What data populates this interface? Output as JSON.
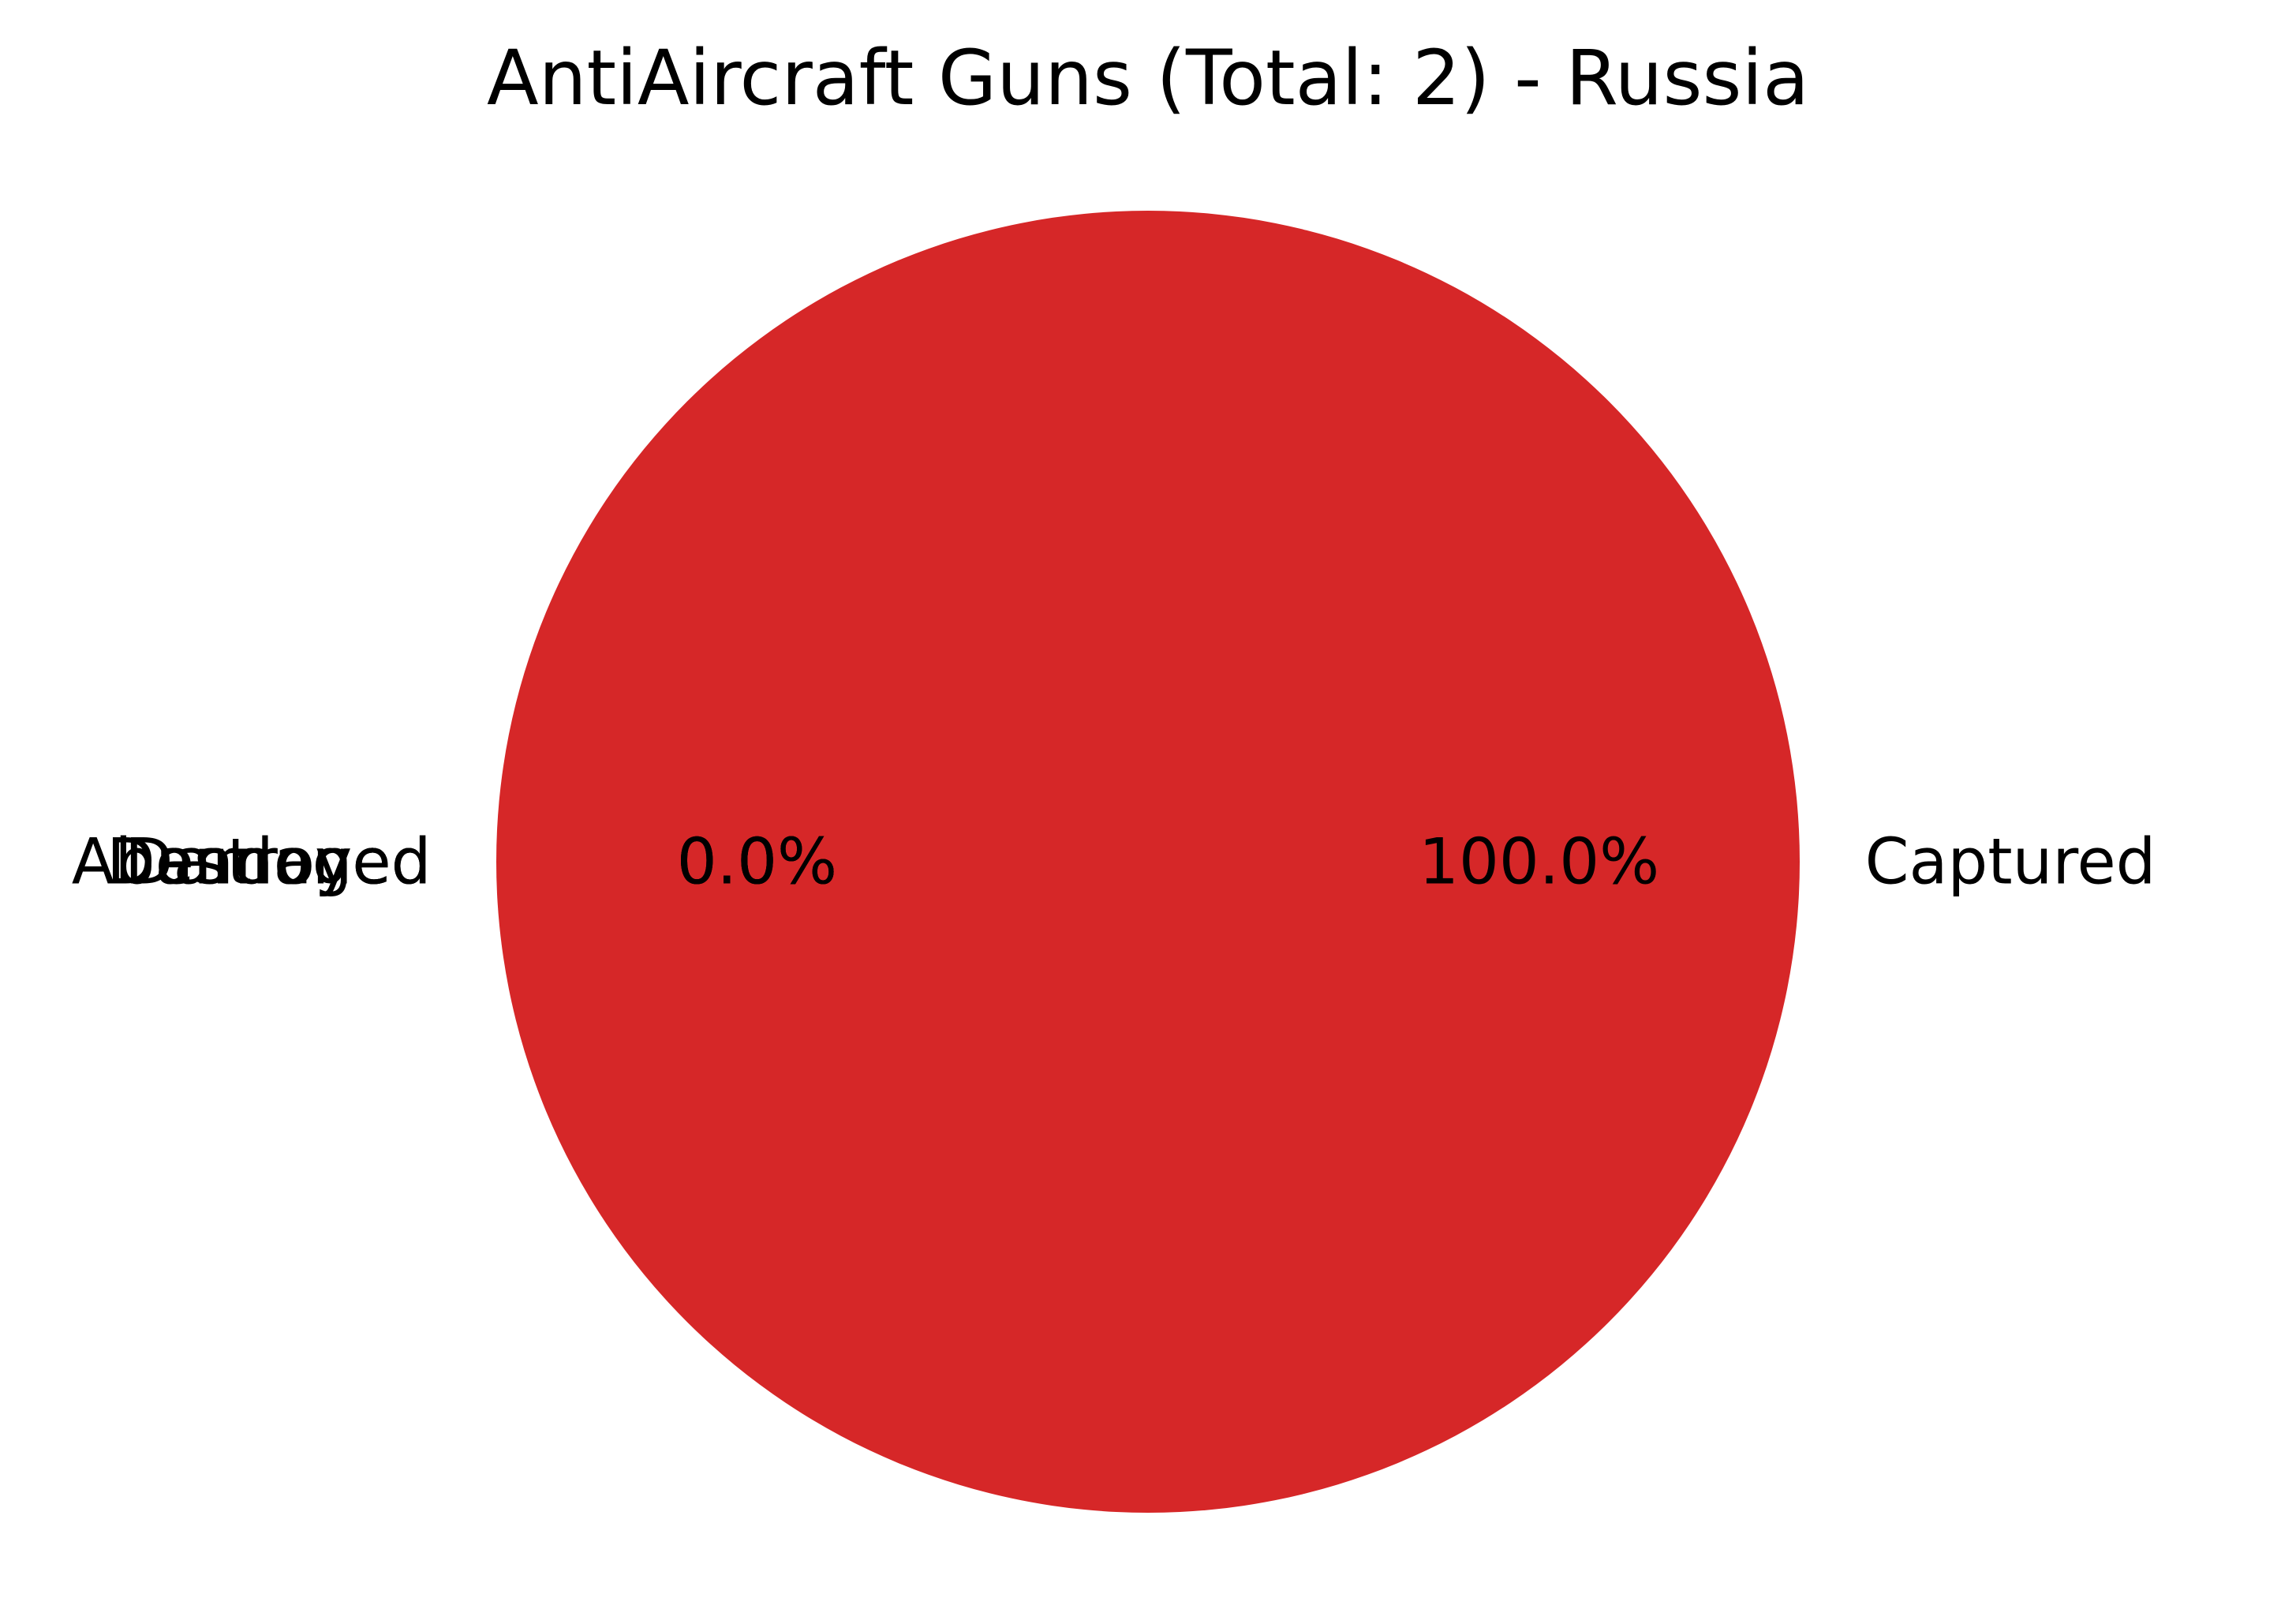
{
  "chart_data": {
    "type": "pie",
    "title": "AntiAircraft Guns (Total: 2) - Russia",
    "categories": [
      "Captured",
      "Destroyed",
      "Abandoned",
      "Damaged"
    ],
    "values": [
      2,
      0,
      0,
      0
    ],
    "percent_labels": [
      "100.0%",
      "0.0%",
      "0.0%",
      "0.0%"
    ],
    "colors": [
      "#d62728",
      "#1f77b4",
      "#ff7f0e",
      "#2ca02c"
    ],
    "start_angle_deg": 180,
    "direction": "counterclockwise",
    "legend": "none"
  }
}
